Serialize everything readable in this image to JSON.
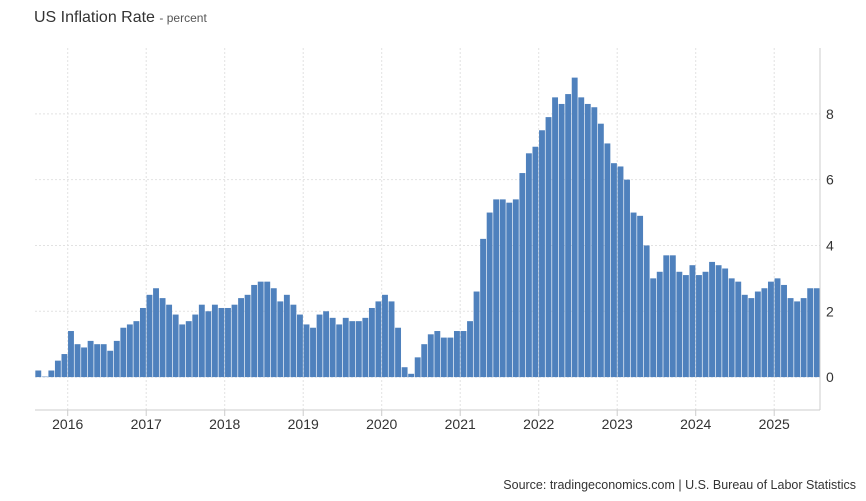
{
  "chart_data": {
    "type": "bar",
    "title": "US Inflation Rate",
    "unit": "percent",
    "source": "Source: tradingeconomics.com | U.S. Bureau of Labor Statistics",
    "ylim": [
      -1,
      10
    ],
    "yticks": [
      0,
      2,
      4,
      6,
      8
    ],
    "xticks": [
      "2016",
      "2017",
      "2018",
      "2019",
      "2020",
      "2021",
      "2022",
      "2023",
      "2024",
      "2025"
    ],
    "grid": true,
    "bar_color": "#4f81bd",
    "categories": [
      "2015-08",
      "2015-09",
      "2015-10",
      "2015-11",
      "2015-12",
      "2016-01",
      "2016-02",
      "2016-03",
      "2016-04",
      "2016-05",
      "2016-06",
      "2016-07",
      "2016-08",
      "2016-09",
      "2016-10",
      "2016-11",
      "2016-12",
      "2017-01",
      "2017-02",
      "2017-03",
      "2017-04",
      "2017-05",
      "2017-06",
      "2017-07",
      "2017-08",
      "2017-09",
      "2017-10",
      "2017-11",
      "2017-12",
      "2018-01",
      "2018-02",
      "2018-03",
      "2018-04",
      "2018-05",
      "2018-06",
      "2018-07",
      "2018-08",
      "2018-09",
      "2018-10",
      "2018-11",
      "2018-12",
      "2019-01",
      "2019-02",
      "2019-03",
      "2019-04",
      "2019-05",
      "2019-06",
      "2019-07",
      "2019-08",
      "2019-09",
      "2019-10",
      "2019-11",
      "2019-12",
      "2020-01",
      "2020-02",
      "2020-03",
      "2020-04",
      "2020-05",
      "2020-06",
      "2020-07",
      "2020-08",
      "2020-09",
      "2020-10",
      "2020-11",
      "2020-12",
      "2021-01",
      "2021-02",
      "2021-03",
      "2021-04",
      "2021-05",
      "2021-06",
      "2021-07",
      "2021-08",
      "2021-09",
      "2021-10",
      "2021-11",
      "2021-12",
      "2022-01",
      "2022-02",
      "2022-03",
      "2022-04",
      "2022-05",
      "2022-06",
      "2022-07",
      "2022-08",
      "2022-09",
      "2022-10",
      "2022-11",
      "2022-12",
      "2023-01",
      "2023-02",
      "2023-03",
      "2023-04",
      "2023-05",
      "2023-06",
      "2023-07",
      "2023-08",
      "2023-09",
      "2023-10",
      "2023-11",
      "2023-12",
      "2024-01",
      "2024-02",
      "2024-03",
      "2024-04",
      "2024-05",
      "2024-06",
      "2024-07",
      "2024-08",
      "2024-09",
      "2024-10",
      "2024-11",
      "2024-12",
      "2025-01",
      "2025-02",
      "2025-03",
      "2025-04",
      "2025-05",
      "2025-06",
      "2025-07"
    ],
    "values": [
      0.2,
      0.0,
      0.2,
      0.5,
      0.7,
      1.4,
      1.0,
      0.9,
      1.1,
      1.0,
      1.0,
      0.8,
      1.1,
      1.5,
      1.6,
      1.7,
      2.1,
      2.5,
      2.7,
      2.4,
      2.2,
      1.9,
      1.6,
      1.7,
      1.9,
      2.2,
      2.0,
      2.2,
      2.1,
      2.1,
      2.2,
      2.4,
      2.5,
      2.8,
      2.9,
      2.9,
      2.7,
      2.3,
      2.5,
      2.2,
      1.9,
      1.6,
      1.5,
      1.9,
      2.0,
      1.8,
      1.6,
      1.8,
      1.7,
      1.7,
      1.8,
      2.1,
      2.3,
      2.5,
      2.3,
      1.5,
      0.3,
      0.1,
      0.6,
      1.0,
      1.3,
      1.4,
      1.2,
      1.2,
      1.4,
      1.4,
      1.7,
      2.6,
      4.2,
      5.0,
      5.4,
      5.4,
      5.3,
      5.4,
      6.2,
      6.8,
      7.0,
      7.5,
      7.9,
      8.5,
      8.3,
      8.6,
      9.1,
      8.5,
      8.3,
      8.2,
      7.7,
      7.1,
      6.5,
      6.4,
      6.0,
      5.0,
      4.9,
      4.0,
      3.0,
      3.2,
      3.7,
      3.7,
      3.2,
      3.1,
      3.4,
      3.1,
      3.2,
      3.5,
      3.4,
      3.3,
      3.0,
      2.9,
      2.5,
      2.4,
      2.6,
      2.7,
      2.9,
      3.0,
      2.8,
      2.4,
      2.3,
      2.4,
      2.7,
      2.7
    ]
  }
}
